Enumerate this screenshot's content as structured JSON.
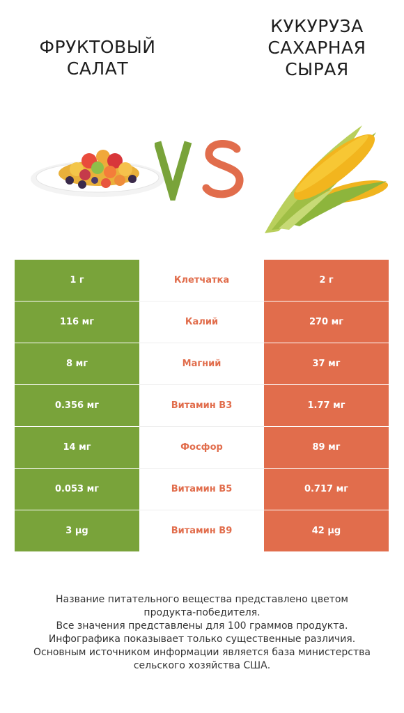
{
  "header": {
    "left_title": "ФРУКТОВЫЙ\nСАЛАТ",
    "right_title": "КУКУРУЗА\nСАХАРНАЯ\nСЫРАЯ",
    "vs_label": "VS"
  },
  "colors": {
    "winner_left": "#79a33a",
    "winner_right": "#e16d4c"
  },
  "rows": [
    {
      "left": "1 г",
      "nutrient": "Клетчатка",
      "right": "2 г"
    },
    {
      "left": "116 мг",
      "nutrient": "Калий",
      "right": "270 мг"
    },
    {
      "left": "8 мг",
      "nutrient": "Магний",
      "right": "37 мг"
    },
    {
      "left": "0.356 мг",
      "nutrient": "Витамин B3",
      "right": "1.77 мг"
    },
    {
      "left": "14 мг",
      "nutrient": "Фосфор",
      "right": "89 мг"
    },
    {
      "left": "0.053 мг",
      "nutrient": "Витамин B5",
      "right": "0.717 мг"
    },
    {
      "left": "3 µg",
      "nutrient": "Витамин B9",
      "right": "42 µg"
    }
  ],
  "footnote": [
    "Название питательного вещества представлено цветом",
    "продукта-победителя.",
    "Все значения представлены для 100 граммов продукта.",
    "Инфографика показывает только существенные различия.",
    "Основным источником информации является база министерства",
    "сельского хозяйства США."
  ]
}
